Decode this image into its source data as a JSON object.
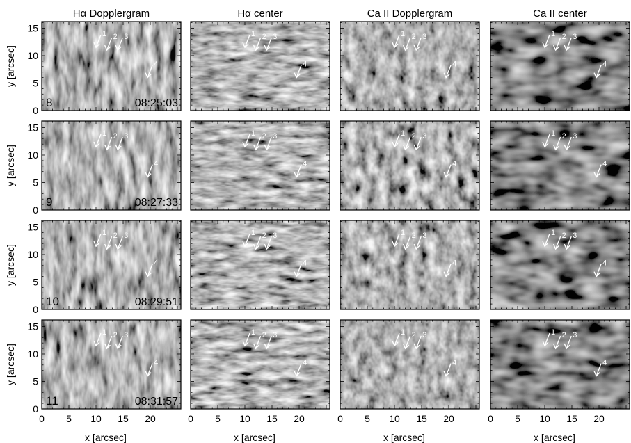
{
  "column_titles": [
    "Hα Dopplergram",
    "Hα center",
    "Ca II Dopplergram",
    "Ca II center"
  ],
  "rows": [
    {
      "frame": "8",
      "time": "08:25:03"
    },
    {
      "frame": "9",
      "time": "08:27:33"
    },
    {
      "frame": "10",
      "time": "08:29:51"
    },
    {
      "frame": "11",
      "time": "08:31:57"
    }
  ],
  "y_axis_label": "y [arcsec]",
  "x_axis_label": "x [arcsec]",
  "y_ticks": [
    "0",
    "5",
    "10",
    "15"
  ],
  "x_ticks": [
    "0",
    "5",
    "10",
    "15",
    "20"
  ],
  "arrow_labels": [
    "1",
    "2",
    "3",
    "4"
  ],
  "chart_data": {
    "type": "image-grid",
    "x_range": [
      0,
      25
    ],
    "y_range": [
      0,
      16
    ],
    "x_tick_values": [
      0,
      5,
      10,
      15,
      20
    ],
    "y_tick_values": [
      0,
      5,
      10,
      15
    ],
    "arrows": [
      {
        "label": "1",
        "x": 10.0,
        "y": 11.5
      },
      {
        "label": "2",
        "x": 12.0,
        "y": 11.0
      },
      {
        "label": "3",
        "x": 14.0,
        "y": 11.0
      },
      {
        "label": "4",
        "x": 19.5,
        "y": 6.0
      }
    ]
  }
}
